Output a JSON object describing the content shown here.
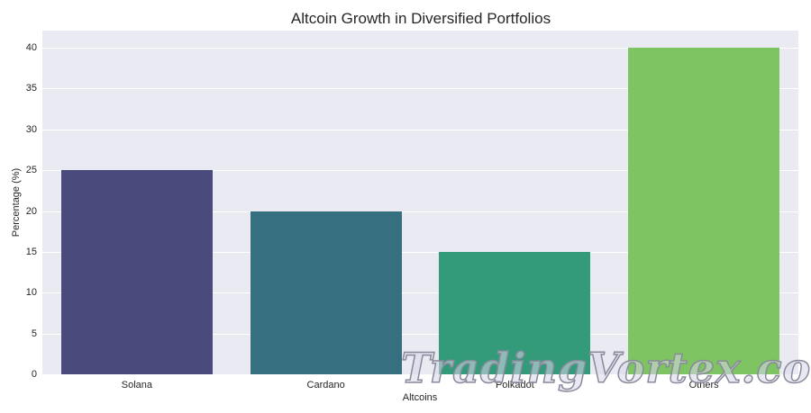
{
  "chart_data": {
    "type": "bar",
    "title": "Altcoin Growth in Diversified Portfolios",
    "xlabel": "Altcoins",
    "ylabel": "Percentage (%)",
    "categories": [
      "Solana",
      "Cardano",
      "Polkadot",
      "Others"
    ],
    "values": [
      25,
      20,
      15,
      40
    ],
    "colors": [
      "#4a4a7c",
      "#367080",
      "#339a7a",
      "#7fc462"
    ],
    "yticks": [
      0,
      5,
      10,
      15,
      20,
      25,
      30,
      35,
      40
    ],
    "ylim": [
      0,
      42.1
    ],
    "grid": true,
    "legend": null
  },
  "watermark": "TradingVortex.com"
}
